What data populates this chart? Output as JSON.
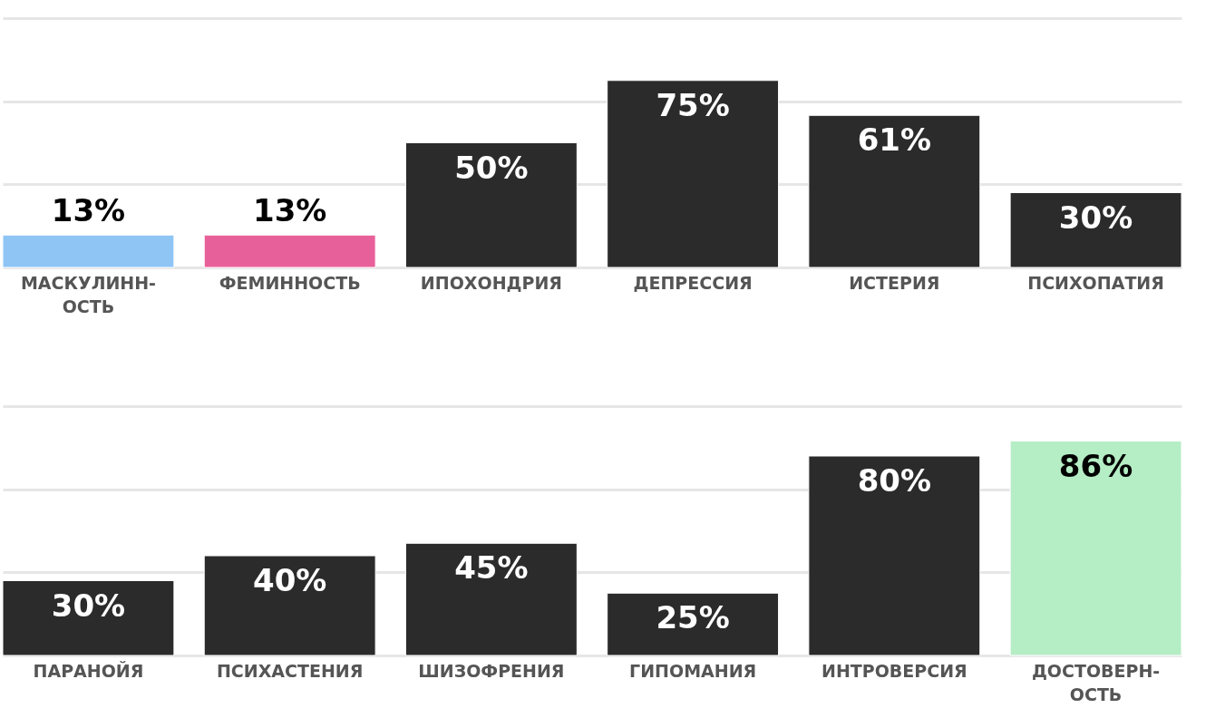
{
  "chart_data": [
    {
      "type": "bar",
      "categories": [
        "МАСКУЛИНН-ОСТЬ",
        "ФЕМИННОСТЬ",
        "ИПОХОНДРИЯ",
        "ДЕПРЕССИЯ",
        "ИСТЕРИЯ",
        "ПСИХОПАТИЯ"
      ],
      "values": [
        13,
        13,
        50,
        75,
        61,
        30
      ],
      "value_labels": [
        "13%",
        "13%",
        "50%",
        "75%",
        "61%",
        "30%"
      ],
      "colors": [
        "#8ec5f5",
        "#e8609a",
        "#2b2b2b",
        "#2b2b2b",
        "#2b2b2b",
        "#2b2b2b"
      ],
      "ylim": [
        0,
        100
      ],
      "yticks": [
        {
          "value": 0,
          "label": null
        },
        {
          "value": 33.3,
          "label": null
        },
        {
          "value": 66.7,
          "label": null
        },
        {
          "value": 100,
          "label": null
        }
      ],
      "grid": "y",
      "tick_labels": "x"
    },
    {
      "type": "bar",
      "categories": [
        "ПАРАНОЙЯ",
        "ПСИХАСТЕНИЯ",
        "ШИЗОФРЕНИЯ",
        "ГИПОМАНИЯ",
        "ИНТРОВЕРСИЯ",
        "ДОСТОВЕРН-ОСТЬ"
      ],
      "values": [
        30,
        40,
        45,
        25,
        80,
        86
      ],
      "value_labels": [
        "30%",
        "40%",
        "45%",
        "25%",
        "80%",
        "86%"
      ],
      "colors": [
        "#2b2b2b",
        "#2b2b2b",
        "#2b2b2b",
        "#2b2b2b",
        "#2b2b2b",
        "#b5edc5"
      ],
      "ylim": [
        0,
        100
      ],
      "yticks": [
        {
          "value": 0,
          "label": null
        },
        {
          "value": 33.3,
          "label": null
        },
        {
          "value": 66.7,
          "label": null
        },
        {
          "value": 100,
          "label": null
        }
      ],
      "grid": "y",
      "tick_labels": "x"
    }
  ]
}
